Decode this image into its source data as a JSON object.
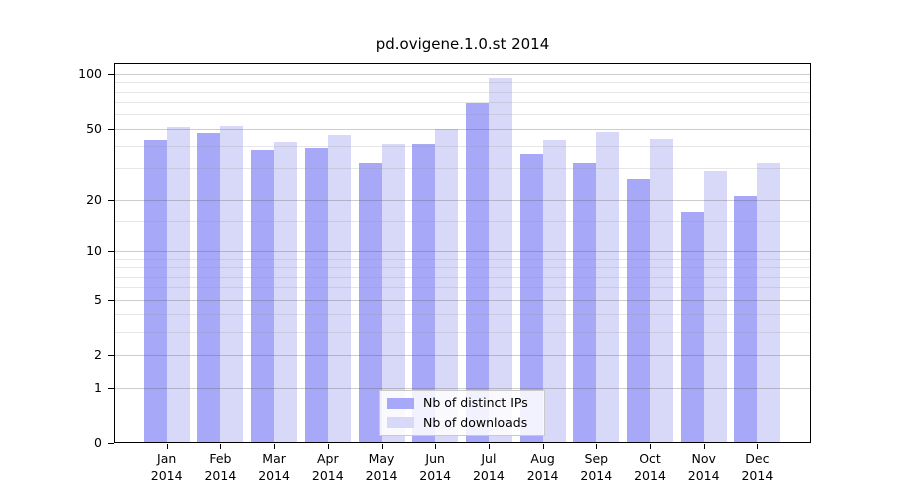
{
  "chart_data": {
    "type": "bar",
    "title": "pd.ovigene.1.0.st 2014",
    "categories": [
      "Jan 2014",
      "Feb 2014",
      "Mar 2014",
      "Apr 2014",
      "May 2014",
      "Jun 2014",
      "Jul 2014",
      "Aug 2014",
      "Sep 2014",
      "Oct 2014",
      "Nov 2014",
      "Dec 2014"
    ],
    "series": [
      {
        "name": "Nb of distinct IPs",
        "color": "#a8a8f8",
        "values": [
          43,
          47,
          38,
          39,
          32,
          41,
          69,
          36,
          32,
          26,
          17,
          21
        ]
      },
      {
        "name": "Nb of downloads",
        "color": "#d8d8f8",
        "values": [
          51,
          52,
          42,
          46,
          41,
          50,
          95,
          43,
          48,
          44,
          29,
          32
        ]
      }
    ],
    "xlabel": "",
    "ylabel": "",
    "y_scale": "log1p",
    "y_axis_ticks": [
      0,
      1,
      2,
      5,
      10,
      20,
      50,
      100
    ],
    "y_minor_gridlines": [
      3,
      4,
      6,
      7,
      8,
      9,
      15,
      30,
      40,
      60,
      70,
      80,
      90
    ],
    "ylim": [
      0,
      115
    ],
    "grid": "on",
    "legend_position": "bottom-center",
    "colors": {
      "distinct_ips_bar": "#a8a8f8",
      "downloads_bar": "#d8d8f8",
      "major_gridline": "#cdcdcd",
      "minor_gridline": "#e6e6e6",
      "axis": "#000000",
      "background": "#ffffff"
    }
  }
}
